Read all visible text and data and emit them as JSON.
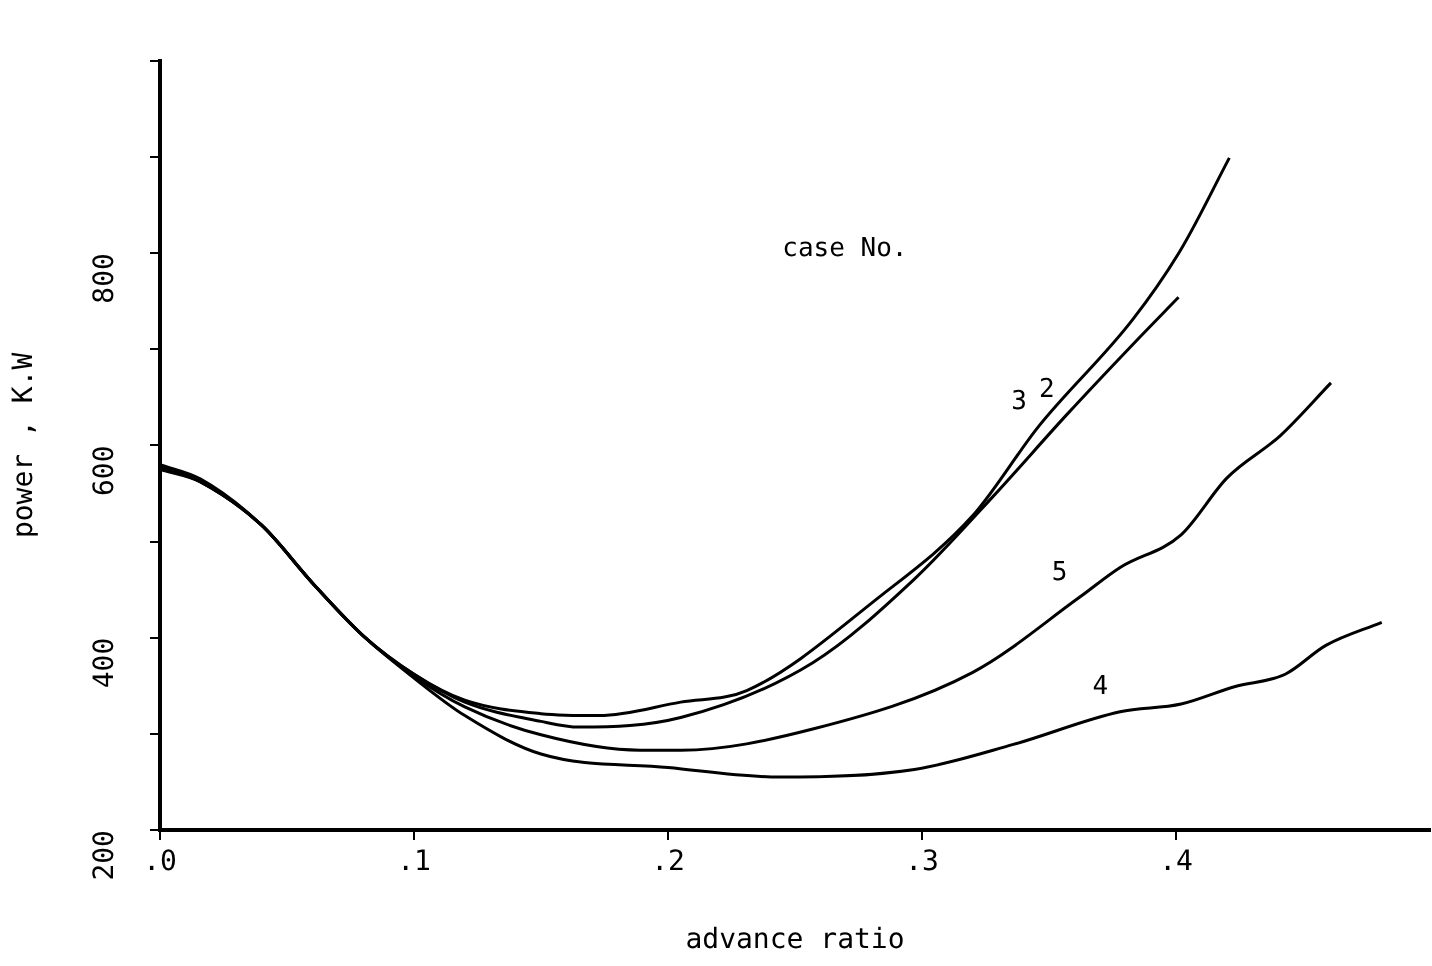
{
  "chart_data": {
    "type": "line",
    "xlabel": "advance ratio",
    "ylabel": "power , K.W",
    "xlim": [
      0,
      0.5
    ],
    "xticks": [
      {
        "value": 0,
        "label": ".0"
      },
      {
        "value": 0.1,
        "label": ".1"
      },
      {
        "value": 0.2,
        "label": ".2"
      },
      {
        "value": 0.3,
        "label": ".3"
      },
      {
        "value": 0.4,
        "label": ".4"
      }
    ],
    "ylim": [
      200,
      1000
    ],
    "yticks": [
      200,
      {
        "value": 300,
        "label": null
      },
      400,
      {
        "value": 500,
        "label": null
      },
      600,
      {
        "value": 700,
        "label": null
      },
      800,
      {
        "value": 900,
        "label": null
      },
      {
        "value": 1000,
        "label": null
      }
    ],
    "legend": false,
    "marker": "none",
    "line_style": "solid",
    "series": [
      {
        "color": "#000000",
        "x": [
          0,
          0.016,
          0.04,
          0.06,
          0.08,
          0.1,
          0.12,
          0.15,
          0.173,
          0.205,
          0.231,
          0.283,
          0.32,
          0.346,
          0.383,
          0.402,
          0.421
        ],
        "values": [
          580,
          565,
          517,
          457,
          402,
          362,
          335,
          321,
          319,
          333,
          345,
          442,
          527,
          620,
          731,
          804,
          899
        ]
      },
      {
        "color": "#000000",
        "x": [
          0,
          0.016,
          0.04,
          0.06,
          0.08,
          0.1,
          0.12,
          0.15,
          0.165,
          0.205,
          0.257,
          0.297,
          0.328,
          0.357,
          0.383,
          0.401
        ],
        "values": [
          575,
          562,
          517,
          457,
          402,
          362,
          333,
          313,
          307,
          317,
          374,
          461,
          547,
          632,
          705,
          754
        ]
      },
      {
        "color": "#000000",
        "x": [
          0,
          0.016,
          0.04,
          0.06,
          0.08,
          0.1,
          0.12,
          0.15,
          0.189,
          0.205,
          0.257,
          0.32,
          0.362,
          0.378,
          0.402,
          0.42,
          0.441,
          0.461
        ],
        "values": [
          578,
          562,
          517,
          457,
          402,
          360,
          328,
          299,
          283,
          283,
          305,
          364,
          442,
          473,
          507,
          566,
          610,
          665
        ]
      },
      {
        "color": "#000000",
        "x": [
          0,
          0.016,
          0.04,
          0.06,
          0.08,
          0.1,
          0.12,
          0.15,
          0.2,
          0.244,
          0.297,
          0.336,
          0.378,
          0.402,
          0.423,
          0.443,
          0.459,
          0.481
        ],
        "values": [
          578,
          562,
          517,
          457,
          402,
          358,
          319,
          279,
          265,
          255,
          263,
          289,
          323,
          331,
          349,
          362,
          392,
          416
        ]
      }
    ],
    "annotations": [
      "case No.",
      {
        "text": "3",
        "x": 0.346,
        "y": 620
      },
      {
        "text": "2",
        "x": 0.357,
        "y": 632
      },
      {
        "text": "5",
        "x": 0.362,
        "y": 442
      },
      {
        "text": "4",
        "x": 0.378,
        "y": 323
      }
    ]
  }
}
